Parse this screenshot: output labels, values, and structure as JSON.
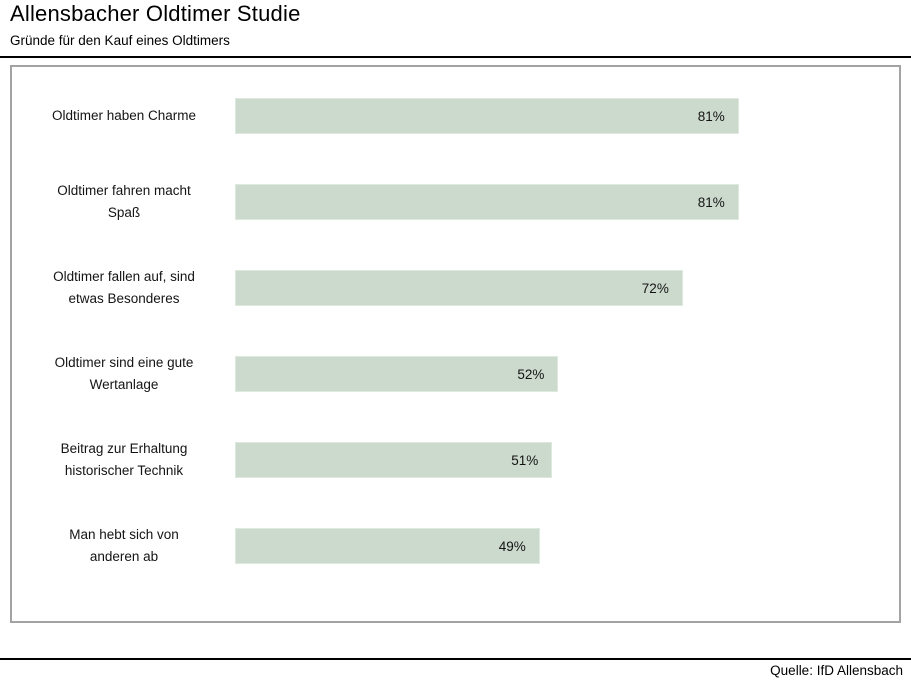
{
  "header": {
    "title": "Allensbacher Oldtimer Studie",
    "subtitle": "Gründe für den Kauf eines Oldtimers"
  },
  "footer": {
    "source": "Quelle: IfD Allensbach"
  },
  "colors": {
    "bar_fill": "#ccd9cd",
    "bar_border": "#dde8de",
    "panel_border": "#a3a3a3",
    "rule": "#000000",
    "text": "#141414"
  },
  "chart_data": {
    "type": "bar",
    "orientation": "horizontal",
    "title": "Allensbacher Oldtimer Studie",
    "subtitle": "Gründe für den Kauf eines Oldtimers",
    "categories": [
      "Oldtimer haben Charme",
      "Oldtimer fahren macht Spaß",
      "Oldtimer fallen auf, sind etwas Besonderes",
      "Oldtimer sind eine gute Wertanlage",
      "Beitrag zur Erhaltung historischer Technik",
      "Man hebt sich von anderen ab"
    ],
    "values": [
      81,
      81,
      72,
      52,
      51,
      49
    ],
    "unit": "%",
    "xlim": [
      0,
      100
    ],
    "grid": false,
    "legend": false,
    "data_labels": "inside-end",
    "bar_color": "#ccd9cd",
    "source": "Quelle: IfD Allensbach"
  }
}
